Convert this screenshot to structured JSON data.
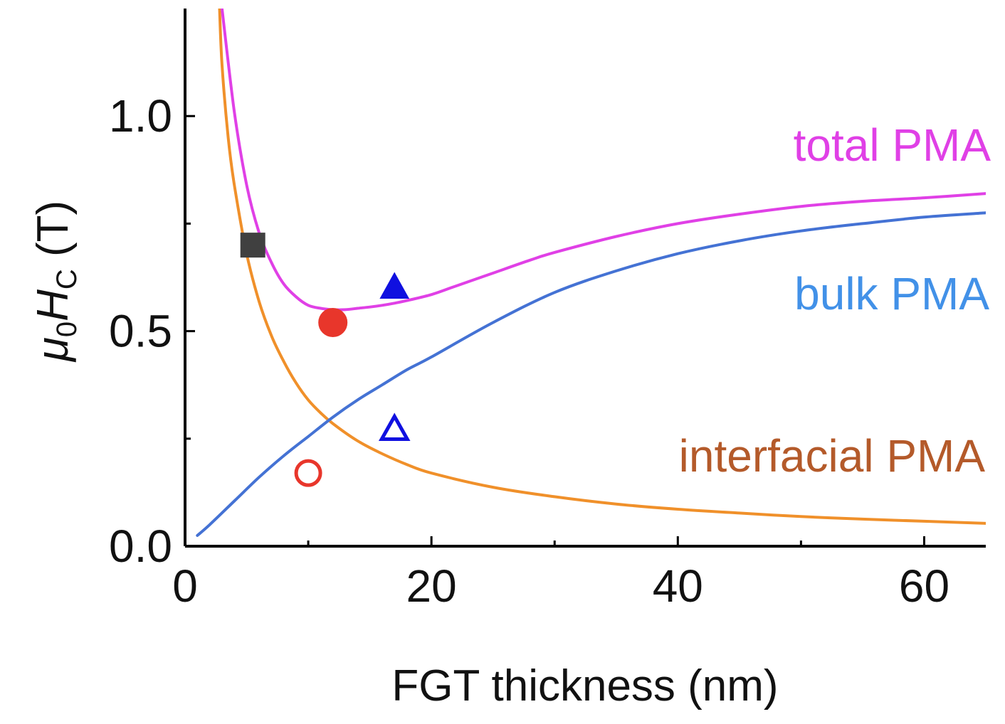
{
  "chart_data": {
    "type": "line",
    "xlabel": "FGT thickness (nm)",
    "ylabel": {
      "mu": "μ",
      "mu_sub": "0",
      "H": "H",
      "H_sub": "C",
      "unit": " (T)"
    },
    "xlim": [
      0,
      65
    ],
    "ylim": [
      0,
      1.25
    ],
    "x_ticks": [
      0,
      20,
      40,
      60
    ],
    "x_tick_labels": [
      "0",
      "20",
      "40",
      "60"
    ],
    "x_minor_ticks": [
      10,
      30,
      50
    ],
    "y_ticks": [
      0.0,
      0.5,
      1.0
    ],
    "y_tick_labels": [
      "0.0",
      "0.5",
      "1.0"
    ],
    "y_minor_ticks": [
      0.25,
      0.75
    ],
    "series": [
      {
        "name": "total PMA",
        "color": "#e040e6",
        "x": [
          3,
          4,
          5,
          6,
          7,
          8,
          9,
          10,
          11,
          12,
          13,
          14,
          15,
          16,
          17,
          18,
          20,
          22,
          25,
          28,
          30,
          35,
          40,
          45,
          50,
          55,
          60,
          65
        ],
        "y": [
          1.25,
          1.01,
          0.84,
          0.73,
          0.66,
          0.61,
          0.58,
          0.56,
          0.553,
          0.55,
          0.55,
          0.553,
          0.556,
          0.56,
          0.565,
          0.571,
          0.585,
          0.605,
          0.635,
          0.665,
          0.683,
          0.72,
          0.75,
          0.772,
          0.79,
          0.802,
          0.81,
          0.82
        ]
      },
      {
        "name": "bulk PMA",
        "color": "#4472d4",
        "x": [
          1,
          2,
          4,
          6,
          8,
          10,
          12,
          14,
          16,
          18,
          20,
          25,
          30,
          35,
          40,
          45,
          50,
          55,
          60,
          65
        ],
        "y": [
          0.025,
          0.05,
          0.105,
          0.16,
          0.21,
          0.255,
          0.3,
          0.34,
          0.375,
          0.41,
          0.44,
          0.52,
          0.59,
          0.64,
          0.68,
          0.71,
          0.733,
          0.75,
          0.765,
          0.775
        ]
      },
      {
        "name": "interfacial PMA",
        "color": "#f0902a",
        "x": [
          2.8,
          3,
          3.5,
          4,
          5,
          6,
          7,
          8,
          9,
          10,
          11,
          12,
          14,
          16,
          18,
          20,
          25,
          30,
          35,
          40,
          45,
          50,
          55,
          60,
          65
        ],
        "y": [
          1.25,
          1.12,
          0.95,
          0.84,
          0.68,
          0.57,
          0.49,
          0.43,
          0.38,
          0.34,
          0.31,
          0.285,
          0.245,
          0.215,
          0.19,
          0.17,
          0.137,
          0.115,
          0.098,
          0.086,
          0.077,
          0.069,
          0.063,
          0.058,
          0.053
        ]
      }
    ],
    "points": [
      {
        "name": "square",
        "x": 5.5,
        "y": 0.7,
        "marker": "square",
        "filled": true,
        "color": "#404040"
      },
      {
        "name": "filled-circle",
        "x": 12,
        "y": 0.52,
        "marker": "circle",
        "filled": true,
        "color": "#e8362b"
      },
      {
        "name": "filled-triangle",
        "x": 17,
        "y": 0.6,
        "marker": "triangle",
        "filled": true,
        "color": "#1010e0"
      },
      {
        "name": "open-circle",
        "x": 10,
        "y": 0.17,
        "marker": "circle",
        "filled": false,
        "color": "#e8362b"
      },
      {
        "name": "open-triangle",
        "x": 17,
        "y": 0.27,
        "marker": "triangle",
        "filled": false,
        "color": "#1010e0"
      }
    ],
    "annotations": [
      {
        "text": "total PMA",
        "color": "#e040e6"
      },
      {
        "text": "bulk PMA",
        "color": "#4291e8"
      },
      {
        "text": "interfacial PMA",
        "color": "#b45a2a"
      }
    ]
  }
}
